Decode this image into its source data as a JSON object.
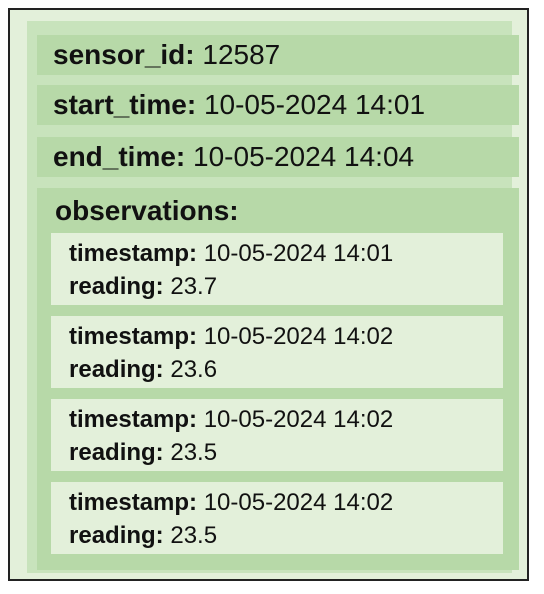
{
  "record": {
    "sensor_id": {
      "key": "sensor_id:",
      "value": "12587"
    },
    "start_time": {
      "key": "start_time:",
      "value": "10-05-2024 14:01"
    },
    "end_time": {
      "key": "end_time:",
      "value": "10-05-2024 14:04"
    },
    "observations": {
      "key": "observations:",
      "items": [
        {
          "timestamp_key": "timestamp:",
          "timestamp": "10-05-2024 14:01",
          "reading_key": "reading:",
          "reading": "23.7"
        },
        {
          "timestamp_key": "timestamp:",
          "timestamp": "10-05-2024 14:02",
          "reading_key": "reading:",
          "reading": "23.6"
        },
        {
          "timestamp_key": "timestamp:",
          "timestamp": "10-05-2024 14:02",
          "reading_key": "reading:",
          "reading": "23.5"
        },
        {
          "timestamp_key": "timestamp:",
          "timestamp": "10-05-2024 14:02",
          "reading_key": "reading:",
          "reading": "23.5"
        }
      ]
    }
  },
  "colors": {
    "frame_border": "#222222",
    "frame_fill": "#e3f0da",
    "panel_fill": "#c8e3bc",
    "field_fill": "#b7d9a8",
    "card_fill": "#e3f0da"
  }
}
